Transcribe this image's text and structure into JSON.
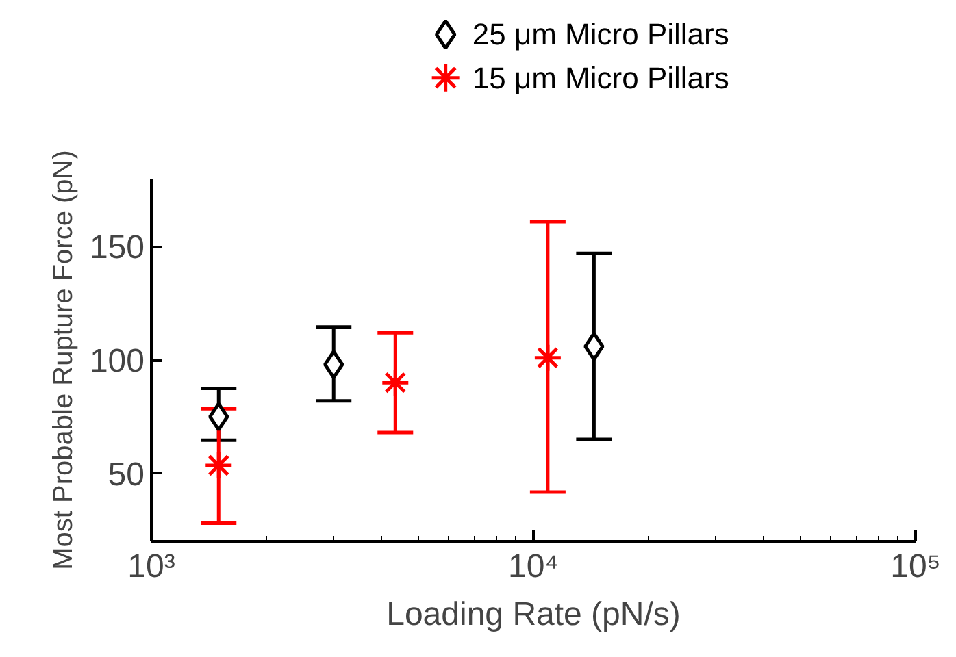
{
  "chart_data": {
    "type": "scatter",
    "xlabel": "Loading Rate (pN/s)",
    "ylabel": "Most Probable Rupture Force (pN)",
    "log": "x",
    "xlim": [
      1000,
      100000
    ],
    "xticks": [
      {
        "value": 1000,
        "label": "10³"
      },
      {
        "value": 10000,
        "label": "10⁴"
      },
      {
        "value": 100000,
        "label": "10⁵"
      }
    ],
    "ylim": [
      20,
      180
    ],
    "yticks": [
      50,
      100,
      150
    ],
    "grid": false,
    "legend": "top",
    "series": [
      {
        "name": "25 μm Micro Pillars",
        "color": "#000000",
        "marker": "diamond",
        "x": [
          1500,
          3000,
          14400
        ],
        "values": [
          75,
          98,
          106
        ],
        "errors": [
          [
            64.6,
            87.5
          ],
          [
            82,
            114.6
          ],
          [
            65,
            147
          ]
        ]
      },
      {
        "name": "15 μm Micro Pillars",
        "color": "#ff0000",
        "marker": "cross",
        "x": [
          1500,
          4350,
          10900
        ],
        "values": [
          53.5,
          90,
          101
        ],
        "errors": [
          [
            28,
            78.5
          ],
          [
            68,
            112
          ],
          [
            41.7,
            161
          ]
        ]
      }
    ]
  }
}
